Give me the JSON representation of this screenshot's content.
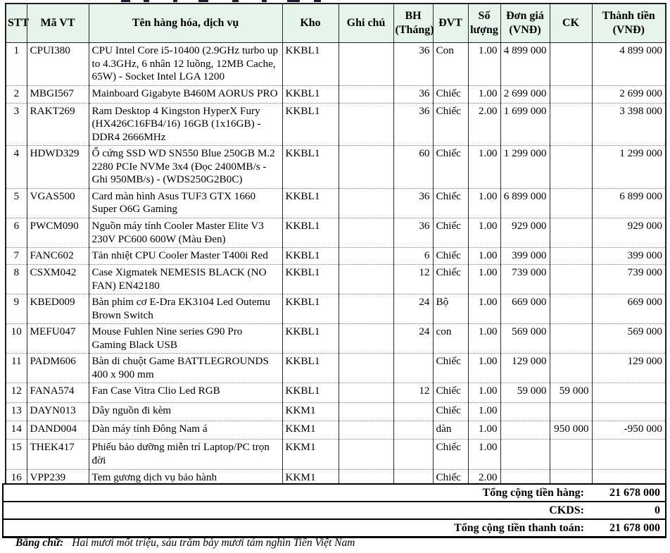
{
  "table": {
    "headers": [
      "STT",
      "Mã VT",
      "Tên hàng hóa, dịch vụ",
      "Kho",
      "Ghi chú",
      "BH (Tháng)",
      "ĐVT",
      "Số lượng",
      "Đơn giá (VNĐ)",
      "CK",
      "Thành tiền (VNĐ)"
    ],
    "rows": [
      [
        "1",
        "CPUI380",
        "CPU Intel Core i5-10400 (2.9GHz turbo up to 4.3GHz, 6 nhân 12 luồng, 12MB Cache, 65W) - Socket Intel LGA 1200",
        "KKBL1",
        "",
        "36",
        "Con",
        "1.00",
        "4 899 000",
        "",
        "4 899 000"
      ],
      [
        "2",
        "MBGI567",
        "Mainboard Gigabyte B460M AORUS PRO",
        "KKBL1",
        "",
        "36",
        "Chiếc",
        "1.00",
        "2 699 000",
        "",
        "2 699 000"
      ],
      [
        "3",
        "RAKT269",
        "Ram Desktop 4 Kingston HyperX Fury (HX426C16FB4/16) 16GB (1x16GB) - DDR4 2666MHz",
        "KKBL1",
        "",
        "36",
        "Chiếc",
        "2.00",
        "1 699 000",
        "",
        "3 398 000"
      ],
      [
        "4",
        "HDWD329",
        "Ổ cứng SSD WD SN550 Blue 250GB M.2 2280 PCIe NVMe 3x4 (Đọc 2400MB/s - Ghi 950MB/s) - (WDS250G2B0C)",
        "KKBL1",
        "",
        "60",
        "Chiếc",
        "1.00",
        "1 299 000",
        "",
        "1 299 000"
      ],
      [
        "5",
        "VGAS500",
        "Card màn hình Asus TUF3 GTX 1660 Super O6G Gaming",
        "KKBL1",
        "",
        "36",
        "Chiếc",
        "1.00",
        "6 899 000",
        "",
        "6 899 000"
      ],
      [
        "6",
        "PWCM090",
        "Nguồn máy tính Cooler Master Elite V3 230V PC600 600W   (Màu Đen)",
        "KKBL1",
        "",
        "36",
        "Chiếc",
        "1.00",
        "929 000",
        "",
        "929 000"
      ],
      [
        "7",
        "FANC602",
        "Tản nhiệt CPU Cooler Master T400i Red",
        "KKBL1",
        "",
        "6",
        "Chiếc",
        "1.00",
        "399 000",
        "",
        "399 000"
      ],
      [
        "8",
        "CSXM042",
        "Case Xigmatek NEMESIS BLACK (NO FAN) EN42180",
        "KKBL1",
        "",
        "12",
        "Chiếc",
        "1.00",
        "739 000",
        "",
        "739 000"
      ],
      [
        "9",
        "KBED009",
        "Bàn phím cơ E-Dra EK3104 Led Outemu Brown Switch",
        "KKBL1",
        "",
        "24",
        "Bộ",
        "1.00",
        "669 000",
        "",
        "669 000"
      ],
      [
        "10",
        "MEFU047",
        "Mouse Fuhlen Nine series G90 Pro Gaming Black USB",
        "KKBL1",
        "",
        "24",
        "con",
        "1.00",
        "569 000",
        "",
        "569 000"
      ],
      [
        "11",
        "PADM606",
        "Bàn di chuột Game BATTLEGROUNDS 400 x 900 mm",
        "KKBL1",
        "",
        "",
        "Chiếc",
        "1.00",
        "129 000",
        "",
        "129 000"
      ],
      [
        "12",
        "FANA574",
        "Fan Case Vitra Clio Led RGB",
        "KKBL1",
        "",
        "12",
        "Chiếc",
        "1.00",
        "59 000",
        "59 000",
        ""
      ],
      [
        "13",
        "DAYN013",
        "Dây nguồn đi kèm",
        "KKM1",
        "",
        "",
        "Chiếc",
        "1.00",
        "",
        "",
        ""
      ],
      [
        "14",
        "DAND004",
        "Dàn máy tính Đông Nam á",
        "KKM1",
        "",
        "",
        "dàn",
        "1.00",
        "",
        "950 000",
        "-950 000"
      ],
      [
        "15",
        "THEK417",
        "Phiếu bảo dưỡng miễn trí Laptop/PC trọn đời",
        "KKM1",
        "",
        "",
        "Chiếc",
        "1.00",
        "",
        "",
        ""
      ],
      [
        "16",
        "VPP239",
        "Tem gương dịch vụ bảo hành",
        "KKM1",
        "",
        "",
        "Chiếc",
        "2.00",
        "",
        "",
        ""
      ]
    ]
  },
  "totals": [
    {
      "label": "Tổng cộng tiền hàng:",
      "value": "21 678 000"
    },
    {
      "label": "CKDS:",
      "value": "0"
    },
    {
      "label": "Tổng cộng tiền thanh toán:",
      "value": "21 678 000"
    }
  ],
  "amount_in_words": {
    "label": "Bằng chữ:",
    "text": "Hai mươi mốt triệu, sáu trăm bảy mươi tám nghìn Tiền Việt Nam"
  },
  "colors": {
    "header_bg": "#e7f4ec",
    "border_dark": "#1f1f1f",
    "row_divider": "#808080"
  }
}
